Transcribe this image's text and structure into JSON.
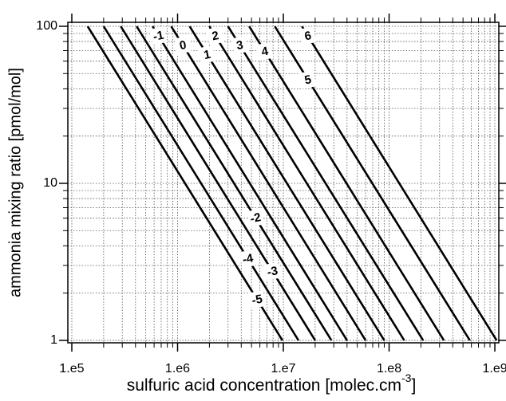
{
  "chart_data": {
    "type": "contour",
    "xlabel": {
      "text": "sulfuric acid concentration [molec.cm",
      "superscript": "-3",
      "end": "]"
    },
    "ylabel": "ammonia mixing ratio [pmol/mol]",
    "xscale": "log",
    "yscale": "log",
    "grid": true,
    "color": "#000000",
    "xlim": [
      91700,
      1090000000
    ],
    "ylim": [
      0.965,
      106
    ],
    "xticks": [
      {
        "value": 100000,
        "label": "1.e5"
      },
      {
        "value": 1000000,
        "label": "1.e6"
      },
      {
        "value": 10000000,
        "label": "1.e7"
      },
      {
        "value": 100000000,
        "label": "1.e8"
      },
      {
        "value": 1000000000,
        "label": "1.e9"
      }
    ],
    "yticks": [
      1,
      10,
      100
    ],
    "series": [
      {
        "name": "-5",
        "x": [
          141000,
          9800000
        ],
        "y": [
          100,
          1
        ]
      },
      {
        "name": "-4",
        "x": [
          200000,
          13900000
        ],
        "y": [
          100,
          1
        ]
      },
      {
        "name": "-3",
        "x": [
          290000,
          20000000
        ],
        "y": [
          100,
          1
        ]
      },
      {
        "name": "-2",
        "x": [
          410000,
          28500000
        ],
        "y": [
          100,
          1
        ]
      },
      {
        "name": "-1",
        "x": [
          580000,
          40000000
        ],
        "y": [
          100,
          1
        ]
      },
      {
        "name": "0",
        "x": [
          870000,
          60000000
        ],
        "y": [
          100,
          1
        ]
      },
      {
        "name": "1",
        "x": [
          1300000,
          90000000
        ],
        "y": [
          100,
          1
        ]
      },
      {
        "name": "2",
        "x": [
          2000000,
          139000000
        ],
        "y": [
          100,
          1
        ]
      },
      {
        "name": "3",
        "x": [
          3000000,
          210000000
        ],
        "y": [
          100,
          1
        ]
      },
      {
        "name": "4",
        "x": [
          4750000,
          330000000
        ],
        "y": [
          100,
          1
        ]
      },
      {
        "name": "5",
        "x": [
          8300000,
          580000000
        ],
        "y": [
          100,
          1
        ]
      },
      {
        "name": "6",
        "x": [
          15000000,
          1040000000
        ],
        "y": [
          100,
          1
        ]
      }
    ]
  }
}
